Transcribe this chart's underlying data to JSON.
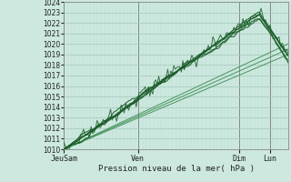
{
  "title": "",
  "xlabel": "Pression niveau de la mer( hPa )",
  "ylabel": "",
  "ylim": [
    1010,
    1024
  ],
  "yticks": [
    1010,
    1011,
    1012,
    1013,
    1014,
    1015,
    1016,
    1017,
    1018,
    1019,
    1020,
    1021,
    1022,
    1023,
    1024
  ],
  "xtick_labels": [
    "JeuSam",
    "Ven",
    "Dim",
    "Lun"
  ],
  "xtick_positions": [
    0.0,
    0.33,
    0.78,
    0.92
  ],
  "background_color": "#cce8df",
  "grid_color_major": "#aacfbe",
  "grid_color_minor": "#bdddd0",
  "line_color_dark": "#1a5c28",
  "line_color_light": "#3a8a50",
  "n_points": 150,
  "figsize": [
    3.2,
    2.0
  ],
  "dpi": 100
}
